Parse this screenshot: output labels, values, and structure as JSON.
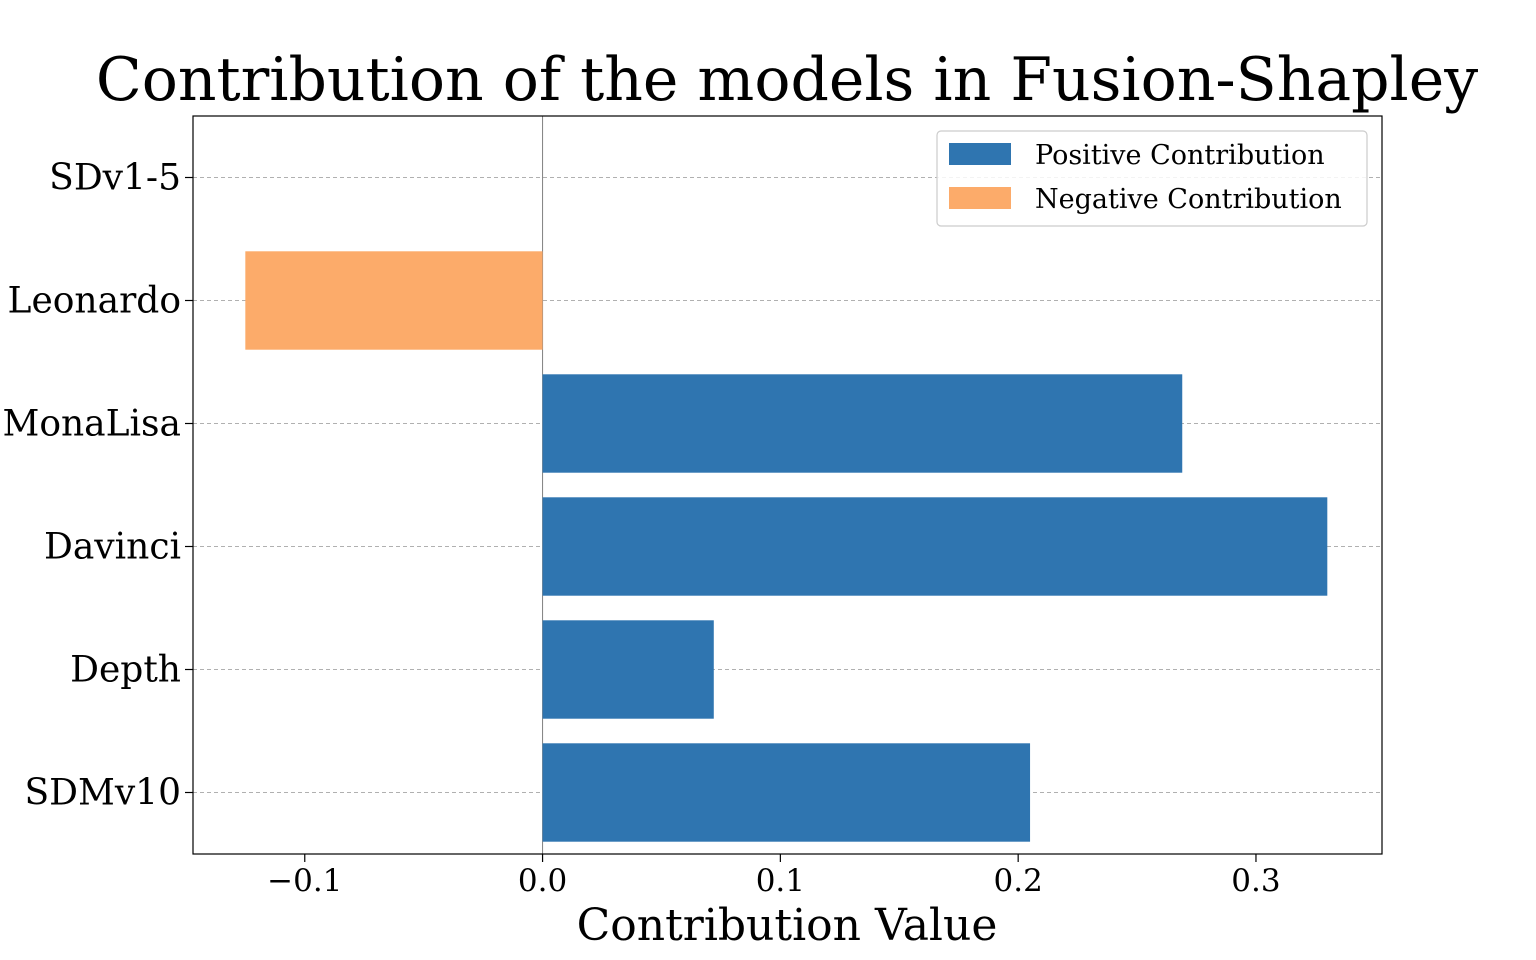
{
  "chart_data": {
    "type": "bar",
    "orientation": "horizontal",
    "title": "Contribution of the models in Fusion-Shapley",
    "xlabel": "Contribution Value",
    "ylabel": "",
    "categories": [
      "SDv1-5",
      "Leonardo",
      "MonaLisa",
      "Davinci",
      "Depth",
      "SDMv10"
    ],
    "values": [
      0.0,
      -0.125,
      0.269,
      0.33,
      0.072,
      0.205
    ],
    "xlim": [
      -0.147,
      0.353
    ],
    "xticks": [
      -0.1,
      0.0,
      0.1,
      0.2,
      0.3
    ],
    "xtick_labels": [
      "−0.1",
      "0.0",
      "0.1",
      "0.2",
      "0.3"
    ],
    "grid": "y, dashed",
    "legend": {
      "placement": "top-right",
      "entries": [
        {
          "label": "Positive Contribution",
          "color": "#2f75b0"
        },
        {
          "label": "Negative Contribution",
          "color": "#fcab6a"
        }
      ]
    },
    "colors": {
      "positive": "#2f75b0",
      "negative": "#fcab6a",
      "grid": "#b0b0b0",
      "zero_line": "#808080"
    }
  }
}
